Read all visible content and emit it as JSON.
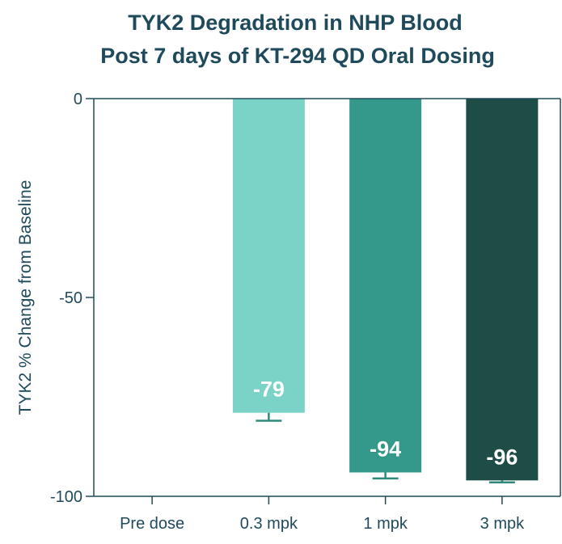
{
  "chart_data": {
    "type": "bar",
    "title": [
      "TYK2 Degradation in NHP Blood",
      "Post 7 days of KT-294 QD Oral Dosing"
    ],
    "xlabel": "",
    "ylabel": "TYK2 % Change from Baseline",
    "categories": [
      "Pre dose",
      "0.3 mpk",
      "1 mpk",
      "3 mpk"
    ],
    "values": [
      0,
      -79,
      -94,
      -96
    ],
    "error": [
      0,
      2,
      1.5,
      0.5
    ],
    "data_labels": [
      "",
      "-79",
      "-94",
      "-96"
    ],
    "colors": [
      "#7ad3c6",
      "#7ad3c6",
      "#34998a",
      "#1d4d46"
    ],
    "ylim": [
      -100,
      0
    ],
    "yticks": [
      0,
      -50,
      -100
    ],
    "ytick_labels": [
      "0",
      "-50",
      "-100"
    ],
    "error_color": "#2f8a7c",
    "axis_color": "#1f4a5c"
  }
}
